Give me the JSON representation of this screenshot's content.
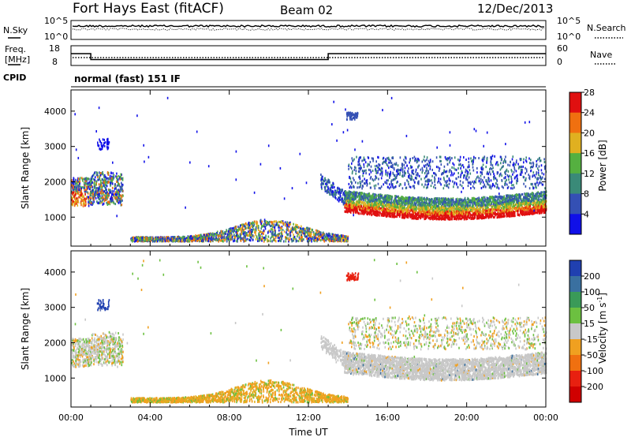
{
  "header": {
    "station": "Fort Hays East (fitACF)",
    "beam": "Beam 02",
    "date": "12/Dec/2013"
  },
  "chart_data": [
    {
      "type": "line",
      "name": "noise-panel",
      "left_label": "N.Sky",
      "right_label": "N.Search",
      "left_ticks": [
        "10^5",
        "10^0"
      ],
      "right_ticks": [
        "10^5",
        "10^0"
      ]
    },
    {
      "type": "line",
      "name": "frequency-panel",
      "left_label_1": "Freq.",
      "left_label_2": "[MHz]",
      "right_label": "Nave",
      "left_ticks": [
        "18",
        "8"
      ],
      "right_ticks": [
        "60",
        "0"
      ],
      "series": [
        {
          "x": [
            0,
            1.0,
            1.0,
            13.0,
            13.0,
            24
          ],
          "values": [
            14,
            14,
            11,
            11,
            14,
            14
          ]
        }
      ]
    },
    {
      "type": "text",
      "cpid_label": "CPID",
      "program": "normal (fast) 151 IF"
    },
    {
      "type": "heatmap",
      "name": "power",
      "ylabel": "Slant Range [km]",
      "yticks": [
        "1000",
        "2000",
        "3000",
        "4000"
      ],
      "ylim": [
        180,
        4600
      ],
      "xlim": [
        0,
        24
      ],
      "colorbar_label": "Power [dB]",
      "colorbar_ticks": [
        "4",
        "8",
        "12",
        "16",
        "20",
        "24",
        "28"
      ],
      "colorbar_colors": [
        "#1010e8",
        "#3450b4",
        "#3a8a78",
        "#55b040",
        "#e0b020",
        "#f07010",
        "#e01010"
      ]
    },
    {
      "type": "heatmap",
      "name": "velocity",
      "ylabel": "Slant Range [km]",
      "yticks": [
        "1000",
        "2000",
        "3000",
        "4000"
      ],
      "ylim": [
        180,
        4600
      ],
      "xlim": [
        0,
        24
      ],
      "xlabel": "Time UT",
      "xticks": [
        "00:00",
        "04:00",
        "08:00",
        "12:00",
        "16:00",
        "20:00",
        "00:00"
      ],
      "colorbar_label": "Velocity [m s-1]",
      "colorbar_label_main": "Velocity [m s",
      "colorbar_label_sup": "-1",
      "colorbar_label_end": "]",
      "colorbar_ticks": [
        "200",
        "100",
        "50",
        "15",
        "-15",
        "-50",
        "-100",
        "-200"
      ],
      "colorbar_colors": [
        "#2040b0",
        "#3a70a0",
        "#3a9a58",
        "#6cc040",
        "#c8c8c8",
        "#f0a020",
        "#f07010",
        "#e82010",
        "#d00000"
      ]
    }
  ]
}
